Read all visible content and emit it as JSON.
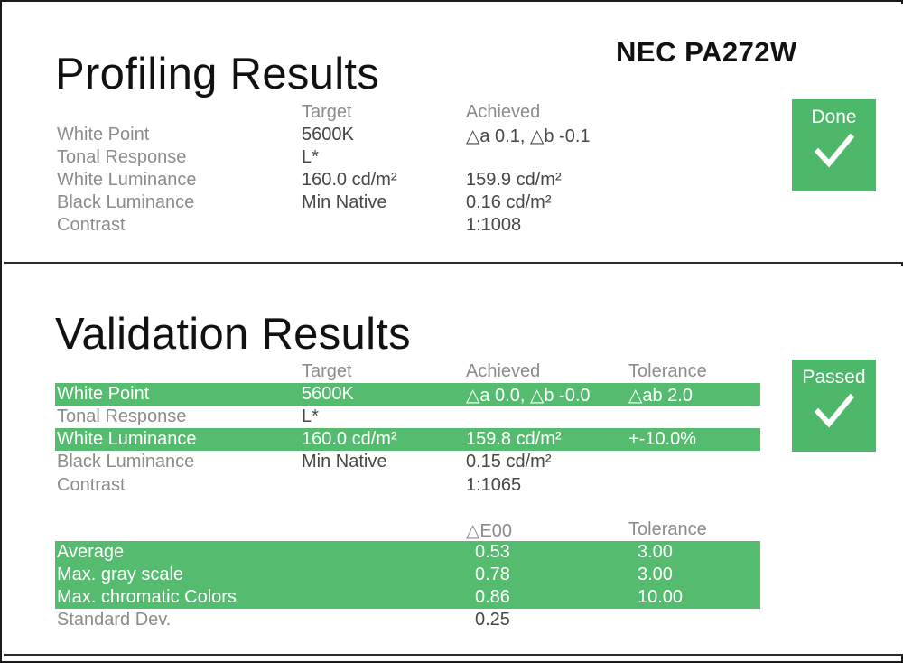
{
  "model": "NEC PA272W",
  "colors": {
    "accent_green": "#4db86a",
    "row_highlight": "#55bb6e",
    "label_gray": "#8c8c8c"
  },
  "profiling": {
    "title": "Profiling Results",
    "status_label": "Done",
    "status_icon": "check-icon",
    "headers": {
      "target": "Target",
      "achieved": "Achieved"
    },
    "rows": [
      {
        "label": "White Point",
        "target": "5600K",
        "achieved": "△a  0.1, △b -0.1"
      },
      {
        "label": "Tonal Response",
        "target": "L*",
        "achieved": ""
      },
      {
        "label": "White Luminance",
        "target": "160.0 cd/m²",
        "achieved": "159.9 cd/m²"
      },
      {
        "label": "Black Luminance",
        "target": "Min Native",
        "achieved": " 0.16 cd/m²"
      },
      {
        "label": "Contrast",
        "target": "",
        "achieved": "1:1008"
      }
    ]
  },
  "validation": {
    "title": "Validation Results",
    "status_label": "Passed",
    "status_icon": "check-icon",
    "headers": {
      "target": "Target",
      "achieved": "Achieved",
      "tolerance": "Tolerance"
    },
    "rows": [
      {
        "label": "White Point",
        "target": "5600K",
        "achieved": "△a  0.0, △b -0.0",
        "tolerance": "△ab  2.0",
        "highlighted": true
      },
      {
        "label": "Tonal Response",
        "target": "L*",
        "achieved": "",
        "tolerance": "",
        "highlighted": false
      },
      {
        "label": "White Luminance",
        "target": "160.0 cd/m²",
        "achieved": "159.8 cd/m²",
        "tolerance": "+-10.0%",
        "highlighted": true
      },
      {
        "label": "Black Luminance",
        "target": "Min Native",
        "achieved": " 0.15 cd/m²",
        "tolerance": "",
        "highlighted": false
      },
      {
        "label": "Contrast",
        "target": "",
        "achieved": "1:1065",
        "tolerance": "",
        "highlighted": false
      }
    ],
    "delta_headers": {
      "de": "△E00",
      "tolerance": "Tolerance"
    },
    "delta_rows": [
      {
        "label": "Average",
        "de": "0.53",
        "tolerance": "3.00",
        "highlighted": true
      },
      {
        "label": "Max. gray scale",
        "de": "0.78",
        "tolerance": "3.00",
        "highlighted": true
      },
      {
        "label": "Max. chromatic Colors",
        "de": "0.86",
        "tolerance": "10.00",
        "highlighted": true
      },
      {
        "label": "Standard Dev.",
        "de": "0.25",
        "tolerance": "",
        "highlighted": false
      }
    ]
  }
}
